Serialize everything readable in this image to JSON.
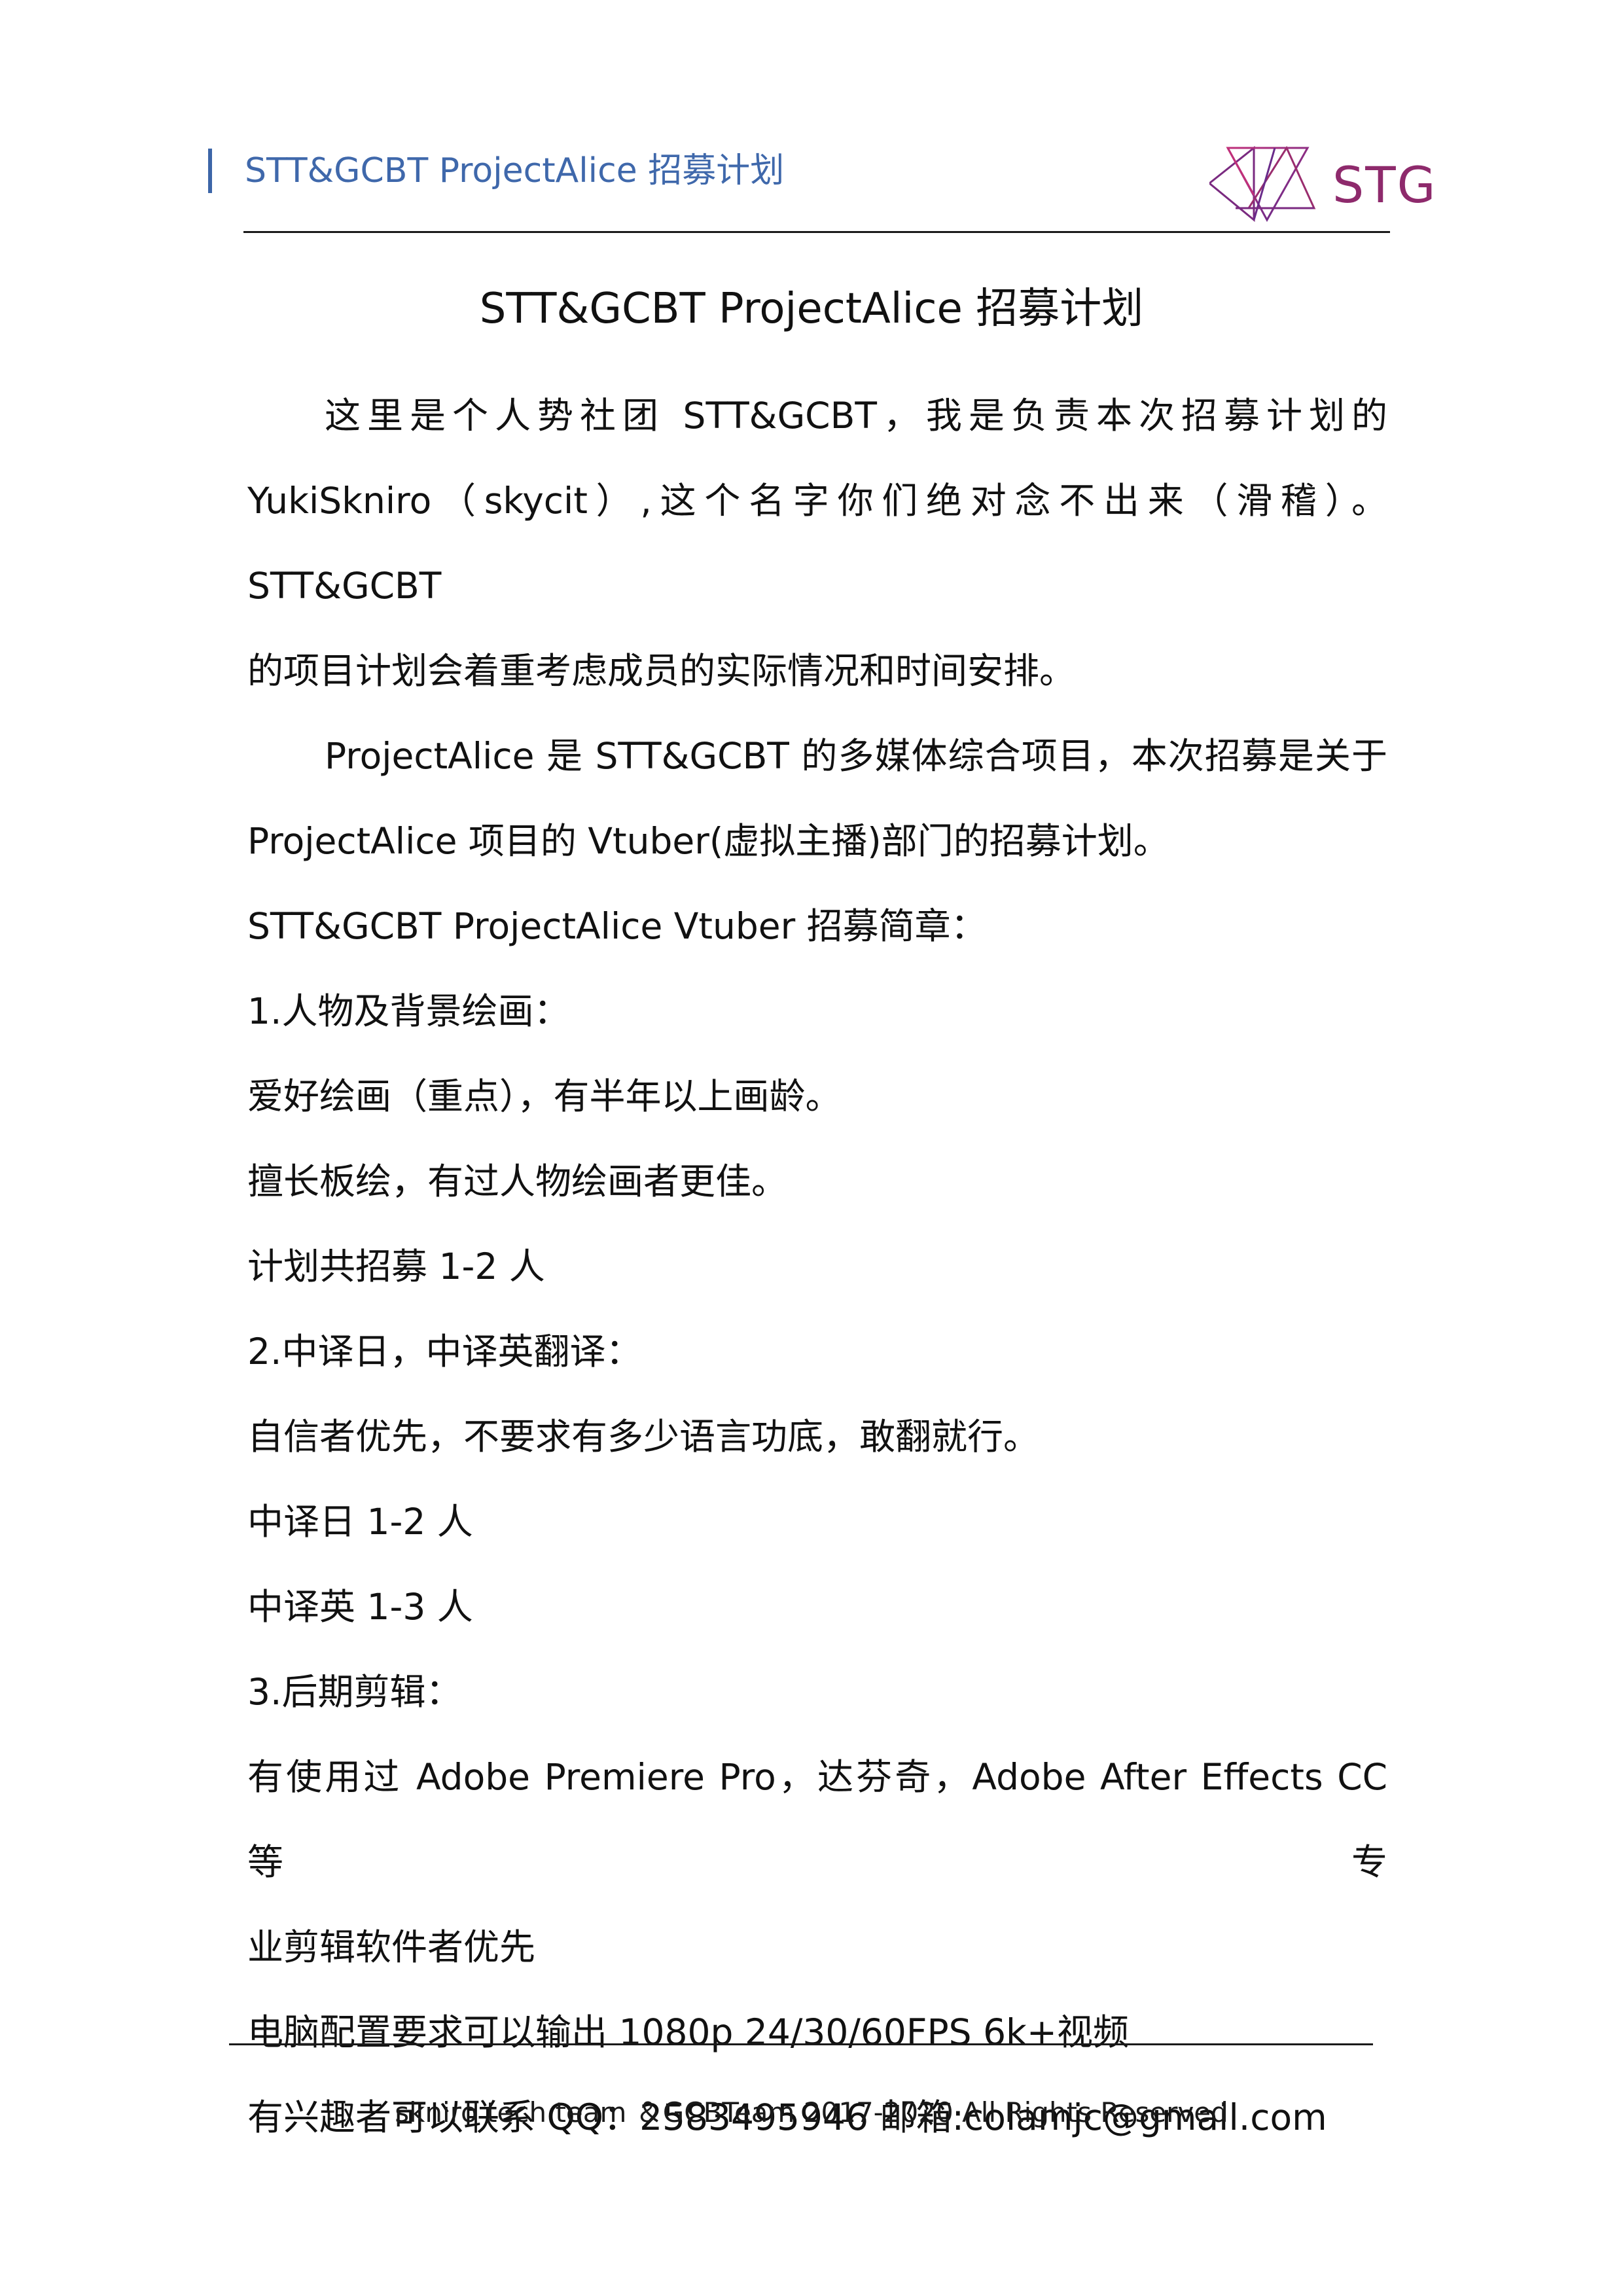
{
  "header": {
    "title": "STT&GCBT ProjectAlice 招募计划",
    "logo_text": "STG",
    "accent_color": "#3f68ab",
    "logo_color": "#8e2a6c"
  },
  "document": {
    "title": "STT&GCBT ProjectAlice 招募计划",
    "paragraphs": [
      "这里是个人势社团 STT&GCBT，我是负责本次招募计划的",
      "YukiSkniro（skycit）,这个名字你们绝对念不出来（滑稽）。STT&GCBT",
      "的项目计划会着重考虑成员的实际情况和时间安排。",
      "ProjectAlice 是 STT&GCBT 的多媒体综合项目，本次招募是关于",
      "ProjectAlice 项目的 Vtuber(虚拟主播)部门的招募计划。",
      "STT&GCBT ProjectAlice Vtuber 招募简章：",
      "1.人物及背景绘画：",
      "爱好绘画（重点），有半年以上画龄。",
      "擅长板绘，有过人物绘画者更佳。",
      "计划共招募 1-2 人",
      "2.中译日，中译英翻译：",
      "自信者优先，不要求有多少语言功底，敢翻就行。",
      "中译日 1-2 人",
      "中译英 1-3 人",
      "3.后期剪辑：",
      "有使用过 Adobe Premiere Pro，达芬奇，Adobe After Effects CC 等专",
      "业剪辑软件者优先",
      "电脑配置要求可以输出 1080p 24/30/60FPS 6k+视频",
      "有兴趣者可以联系 QQ：2583495946  邮箱:colamjc@gmail.com"
    ]
  },
  "footer": {
    "text": "skniro tech team ＆GCBTeam 2017-2020 All Rights Reserved"
  }
}
